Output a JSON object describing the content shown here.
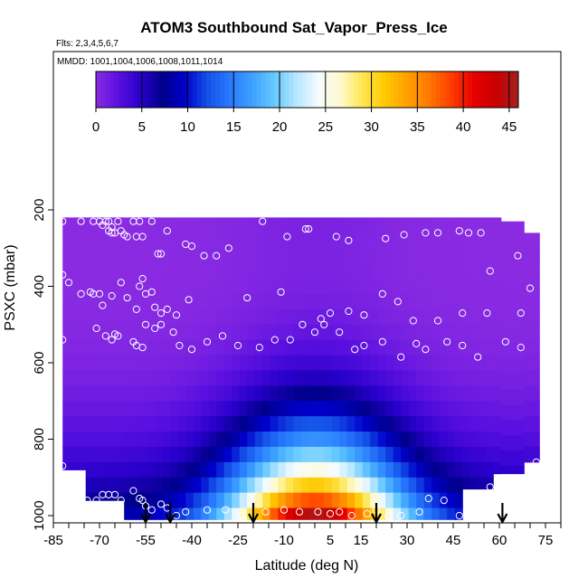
{
  "chart_data": {
    "type": "heatmap",
    "title": "ATOM3 Southbound Sat_Vapor_Press_Ice",
    "flights_note": "Flts: 2,3,4,5,6,7",
    "dates_note": "MMDD: 1001,1004,1006,1008,1011,1014",
    "xlabel": "Latitude (deg N)",
    "ylabel": "PSXC (mbar)",
    "xlim": [
      -85,
      80
    ],
    "ylim": [
      1010,
      60
    ],
    "x_ticks": [
      -85,
      -70,
      -55,
      -40,
      -25,
      -10,
      5,
      15,
      30,
      45,
      60,
      75
    ],
    "y_ticks": [
      200,
      400,
      600,
      800,
      1000
    ],
    "colorbar": {
      "min": 0,
      "max": 46,
      "ticks": [
        0,
        5,
        10,
        15,
        20,
        25,
        30,
        35,
        40,
        45
      ],
      "colors": [
        "#8a2be2",
        "#5a10e0",
        "#2a00cc",
        "#00008b",
        "#0000cd",
        "#1450e6",
        "#2878ff",
        "#3ca0ff",
        "#64c8ff",
        "#b4e6ff",
        "#f5fbff",
        "#fffacd",
        "#ffe650",
        "#ffc800",
        "#ffa000",
        "#ff7800",
        "#ff3c00",
        "#e60000",
        "#c80000",
        "#a52020"
      ]
    },
    "field_description": "Pressure-latitude curtain; values largest near surface in tropics (~40-45 mbar near 1000 mbar between -10 and 15 N) decreasing to ~0-3 mbar aloft",
    "observation_points": [
      [
        -82,
        230
      ],
      [
        -76,
        230
      ],
      [
        -72,
        230
      ],
      [
        -70,
        230
      ],
      [
        -69,
        240
      ],
      [
        -68,
        230
      ],
      [
        -67,
        230
      ],
      [
        -67,
        255
      ],
      [
        -66,
        245
      ],
      [
        -66,
        260
      ],
      [
        -65,
        260
      ],
      [
        -64,
        230
      ],
      [
        -63,
        255
      ],
      [
        -62,
        265
      ],
      [
        -61,
        270
      ],
      [
        -59,
        230
      ],
      [
        -58,
        270
      ],
      [
        -57,
        230
      ],
      [
        -56,
        270
      ],
      [
        -55,
        200
      ],
      [
        -53,
        230
      ],
      [
        -51,
        315
      ],
      [
        -50,
        315
      ],
      [
        -48,
        255
      ],
      [
        -42,
        290
      ],
      [
        -40,
        295
      ],
      [
        -36,
        320
      ],
      [
        -32,
        320
      ],
      [
        -28,
        300
      ],
      [
        -23,
        200
      ],
      [
        -17,
        230
      ],
      [
        -9,
        270
      ],
      [
        -3,
        250
      ],
      [
        -2,
        250
      ],
      [
        7,
        270
      ],
      [
        11,
        280
      ],
      [
        18,
        200
      ],
      [
        23,
        275
      ],
      [
        29,
        265
      ],
      [
        36,
        260
      ],
      [
        40,
        260
      ],
      [
        47,
        255
      ],
      [
        50,
        260
      ],
      [
        54,
        260
      ],
      [
        57,
        360
      ],
      [
        60,
        200
      ],
      [
        62,
        200
      ],
      [
        66,
        320
      ],
      [
        -82,
        370
      ],
      [
        -80,
        390
      ],
      [
        -76,
        420
      ],
      [
        -73,
        415
      ],
      [
        -72,
        420
      ],
      [
        -70,
        420
      ],
      [
        -69,
        450
      ],
      [
        -66,
        425
      ],
      [
        -63,
        390
      ],
      [
        -61,
        430
      ],
      [
        -58,
        460
      ],
      [
        -57,
        400
      ],
      [
        -56,
        380
      ],
      [
        -55,
        420
      ],
      [
        -53,
        415
      ],
      [
        -52,
        455
      ],
      [
        -50,
        470
      ],
      [
        -48,
        460
      ],
      [
        -45,
        475
      ],
      [
        -41,
        435
      ],
      [
        -22,
        430
      ],
      [
        -11,
        415
      ],
      [
        -4,
        500
      ],
      [
        2,
        485
      ],
      [
        5,
        470
      ],
      [
        11,
        465
      ],
      [
        16,
        475
      ],
      [
        22,
        420
      ],
      [
        27,
        440
      ],
      [
        32,
        490
      ],
      [
        40,
        490
      ],
      [
        48,
        470
      ],
      [
        56,
        470
      ],
      [
        67,
        470
      ],
      [
        70,
        405
      ],
      [
        -82,
        540
      ],
      [
        -71,
        510
      ],
      [
        -68,
        530
      ],
      [
        -66,
        540
      ],
      [
        -65,
        525
      ],
      [
        -64,
        530
      ],
      [
        -59,
        545
      ],
      [
        -58,
        555
      ],
      [
        -56,
        560
      ],
      [
        -55,
        500
      ],
      [
        -52,
        510
      ],
      [
        -50,
        500
      ],
      [
        -46,
        520
      ],
      [
        -44,
        555
      ],
      [
        -40,
        565
      ],
      [
        -35,
        545
      ],
      [
        -30,
        530
      ],
      [
        -25,
        555
      ],
      [
        -18,
        560
      ],
      [
        -13,
        540
      ],
      [
        -8,
        540
      ],
      [
        0,
        520
      ],
      [
        3,
        500
      ],
      [
        8,
        520
      ],
      [
        13,
        565
      ],
      [
        16,
        555
      ],
      [
        22,
        545
      ],
      [
        28,
        585
      ],
      [
        33,
        550
      ],
      [
        36,
        565
      ],
      [
        43,
        545
      ],
      [
        48,
        555
      ],
      [
        53,
        585
      ],
      [
        62,
        545
      ],
      [
        67,
        560
      ],
      [
        -74,
        960
      ],
      [
        -71,
        960
      ],
      [
        -69,
        945
      ],
      [
        -67,
        945
      ],
      [
        -65,
        945
      ],
      [
        -63,
        960
      ],
      [
        -59,
        935
      ],
      [
        -57,
        955
      ],
      [
        -56,
        960
      ],
      [
        -55,
        975
      ],
      [
        -53,
        985
      ],
      [
        -50,
        970
      ],
      [
        -48,
        980
      ],
      [
        -45,
        1000
      ],
      [
        -42,
        990
      ],
      [
        -35,
        985
      ],
      [
        -29,
        985
      ],
      [
        -24,
        1000
      ],
      [
        -16,
        990
      ],
      [
        -10,
        985
      ],
      [
        -5,
        990
      ],
      [
        1,
        990
      ],
      [
        5,
        995
      ],
      [
        8,
        990
      ],
      [
        12,
        1000
      ],
      [
        17,
        995
      ],
      [
        20,
        985
      ],
      [
        24,
        1000
      ],
      [
        28,
        1000
      ],
      [
        34,
        990
      ],
      [
        37,
        955
      ],
      [
        42,
        960
      ],
      [
        47,
        1000
      ],
      [
        57,
        925
      ],
      [
        72,
        860
      ],
      [
        -82,
        870
      ],
      [
        -85,
        960
      ]
    ],
    "arrows_x": [
      -55,
      -47,
      -20,
      20,
      61
    ]
  }
}
